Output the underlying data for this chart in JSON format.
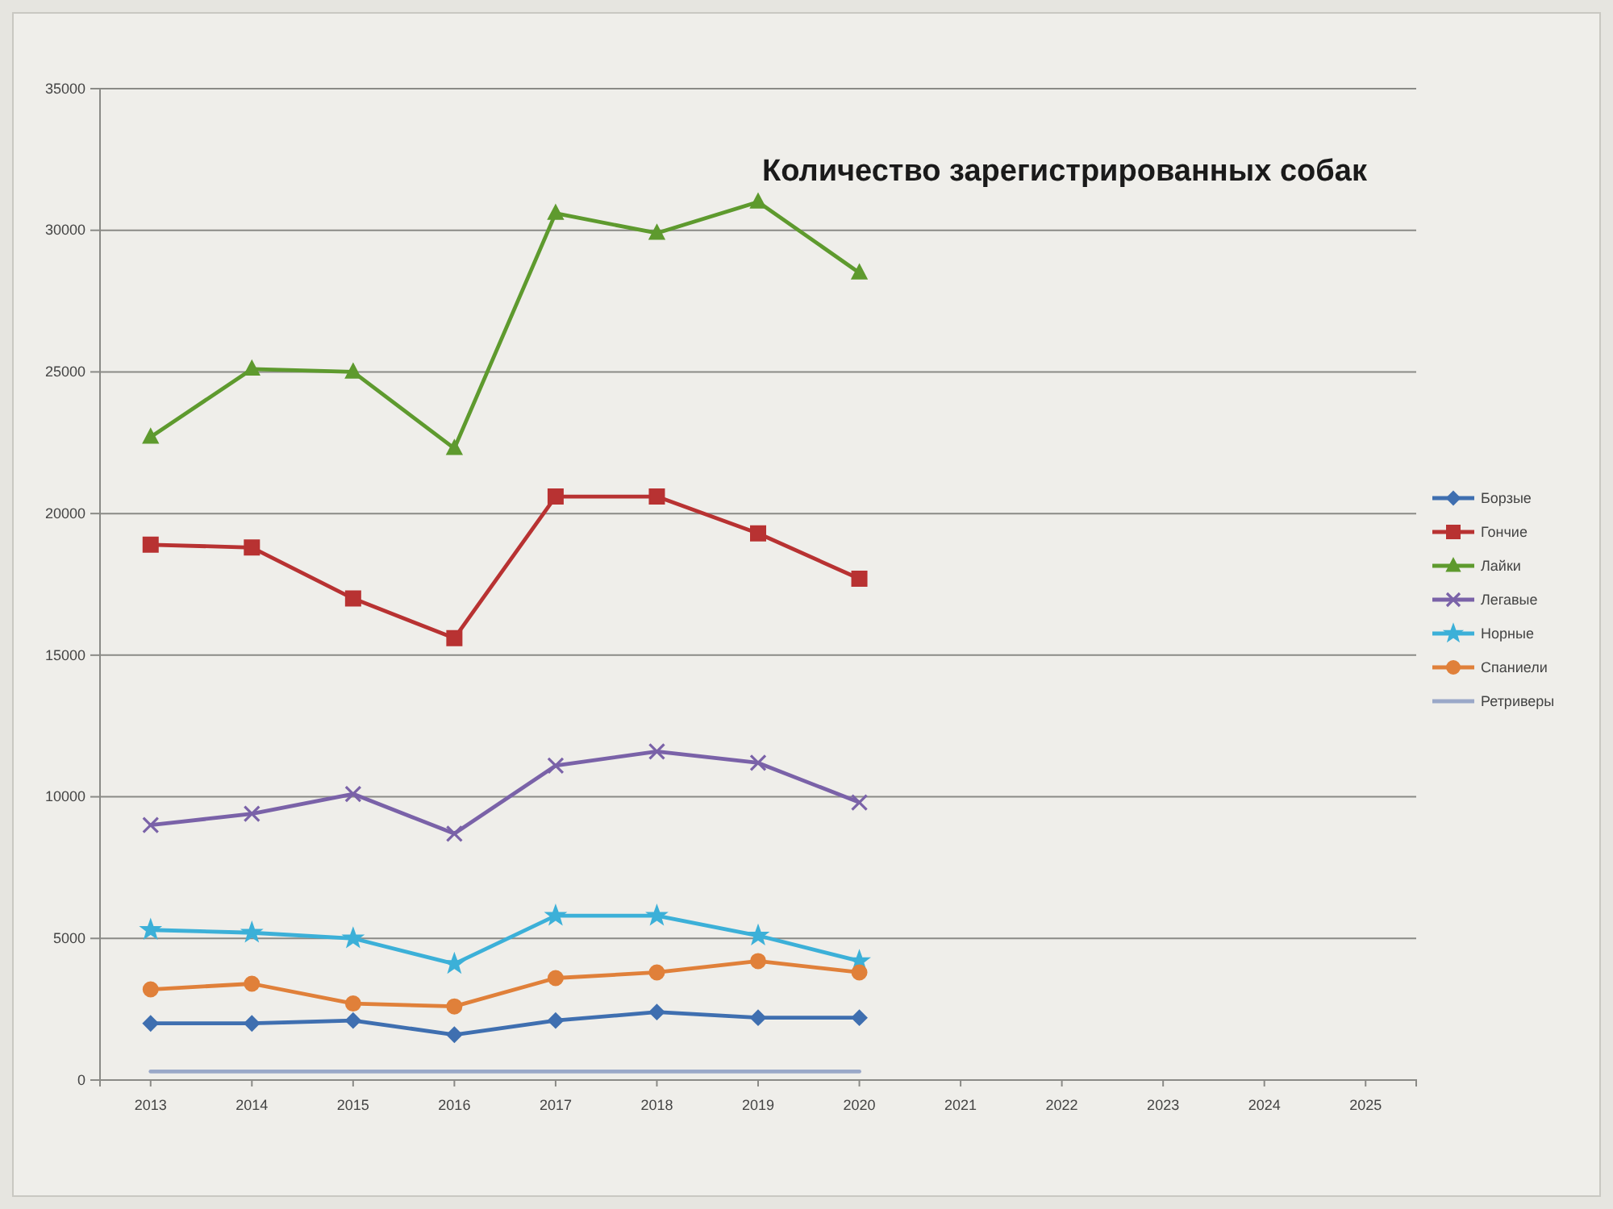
{
  "chart_data": {
    "type": "line",
    "title": "Количество зарегистрированных собак",
    "categories": [
      "2013",
      "2014",
      "2015",
      "2016",
      "2017",
      "2018",
      "2019",
      "2020",
      "2021",
      "2022",
      "2023",
      "2024",
      "2025"
    ],
    "ylim": [
      0,
      35000
    ],
    "yticks": [
      0,
      5000,
      10000,
      15000,
      20000,
      25000,
      30000,
      35000
    ],
    "grid": "y",
    "legend": "right",
    "series": [
      {
        "name": "Борзые",
        "color": "#3f6fb0",
        "marker": "diamond",
        "values": [
          2000,
          2000,
          2100,
          1600,
          2100,
          2400,
          2200,
          2200,
          null,
          null,
          null,
          null,
          null
        ]
      },
      {
        "name": "Гончие",
        "color": "#b83232",
        "marker": "square",
        "values": [
          18900,
          18800,
          17000,
          15600,
          20600,
          20600,
          19300,
          17700,
          null,
          null,
          null,
          null,
          null
        ]
      },
      {
        "name": "Лайки",
        "color": "#5e9a2e",
        "marker": "triangle",
        "values": [
          22700,
          25100,
          25000,
          22300,
          30600,
          29900,
          31000,
          28500,
          null,
          null,
          null,
          null,
          null
        ]
      },
      {
        "name": "Легавые",
        "color": "#7a62a8",
        "marker": "cross",
        "values": [
          9000,
          9400,
          10100,
          8700,
          11100,
          11600,
          11200,
          9800,
          null,
          null,
          null,
          null,
          null
        ]
      },
      {
        "name": "Норные",
        "color": "#3cb0d8",
        "marker": "star",
        "values": [
          5300,
          5200,
          5000,
          4100,
          5800,
          5800,
          5100,
          4200,
          null,
          null,
          null,
          null,
          null
        ]
      },
      {
        "name": "Спаниели",
        "color": "#e0803a",
        "marker": "circle",
        "values": [
          3200,
          3400,
          2700,
          2600,
          3600,
          3800,
          4200,
          3800,
          null,
          null,
          null,
          null,
          null
        ]
      },
      {
        "name": "Ретриверы",
        "color": "#9aa8c8",
        "marker": "none",
        "values": [
          300,
          300,
          300,
          300,
          300,
          300,
          300,
          300,
          null,
          null,
          null,
          null,
          null
        ]
      }
    ]
  }
}
